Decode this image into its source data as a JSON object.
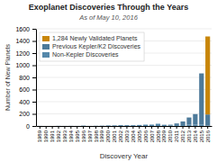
{
  "chart_data": {
    "type": "bar",
    "stacked": true,
    "title": "Exoplanet Discoveries Through the Years",
    "subtitle": "As of May 10, 2016",
    "x_label": "Discovery Year",
    "y_label": "Number of New Planets",
    "categories": [
      "1989",
      "1990",
      "1991",
      "1992",
      "1993",
      "1994",
      "1995",
      "1996",
      "1997",
      "1998",
      "1999",
      "2000",
      "2001",
      "2002",
      "2003",
      "2004",
      "2005",
      "2006",
      "2007",
      "2008",
      "2009",
      "2010",
      "2011",
      "2012",
      "2013",
      "2014",
      "2015",
      "2016"
    ],
    "series": [
      {
        "name": "Non-Kepler Discoveries",
        "color": "#5588aa",
        "values": [
          1,
          0,
          0,
          2,
          1,
          2,
          1,
          6,
          1,
          3,
          5,
          9,
          10,
          14,
          13,
          13,
          17,
          22,
          23,
          37,
          15,
          9,
          16,
          15,
          20,
          21,
          26,
          5
        ]
      },
      {
        "name": "Previous Kepler/K2 Discoveries",
        "color": "#4d7a9a",
        "values": [
          0,
          0,
          0,
          0,
          0,
          0,
          0,
          0,
          0,
          0,
          0,
          0,
          0,
          0,
          0,
          0,
          0,
          0,
          0,
          0,
          5,
          12,
          26,
          60,
          120,
          175,
          840,
          185
        ]
      },
      {
        "name": "1,284 Newly Validated Planets",
        "color": "#c8860a",
        "values": [
          0,
          0,
          0,
          0,
          0,
          0,
          0,
          0,
          0,
          0,
          0,
          0,
          0,
          0,
          0,
          0,
          0,
          0,
          0,
          0,
          0,
          0,
          0,
          0,
          0,
          0,
          0,
          1284
        ]
      }
    ],
    "ylim": [
      0,
      1600
    ],
    "yticks": [
      0,
      200,
      400,
      600,
      800,
      1000,
      1200,
      1400,
      1600
    ],
    "grid": true,
    "legend": "top-left"
  }
}
